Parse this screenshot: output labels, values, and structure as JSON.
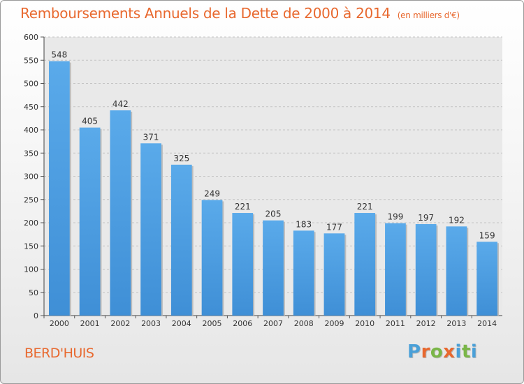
{
  "chart_data": {
    "type": "bar",
    "title": "Remboursements Annuels de la Dette de 2000 à 2014",
    "subtitle": "(en milliers d'€)",
    "categories": [
      "2000",
      "2001",
      "2002",
      "2003",
      "2004",
      "2005",
      "2006",
      "2007",
      "2008",
      "2009",
      "2010",
      "2011",
      "2012",
      "2013",
      "2014"
    ],
    "values": [
      548,
      405,
      442,
      371,
      325,
      249,
      221,
      205,
      183,
      177,
      221,
      199,
      197,
      192,
      159
    ],
    "ylim": [
      0,
      600
    ],
    "yticks": [
      "0",
      "50",
      "100",
      "150",
      "200",
      "250",
      "300",
      "350",
      "400",
      "450",
      "500",
      "550",
      "600"
    ],
    "grid": true,
    "bar_color": "#3f8fd6",
    "bar_color_light": "#5aaaea"
  },
  "footer": {
    "place": "BERD'HUIS"
  },
  "logo": {
    "letters": [
      "P",
      "r",
      "o",
      "x",
      "i",
      "t",
      "i"
    ],
    "colors": [
      "#4aa0d8",
      "#e8682e",
      "#7ab648",
      "#e8682e",
      "#4aa0d8",
      "#7ab648",
      "#4aa0d8"
    ]
  }
}
